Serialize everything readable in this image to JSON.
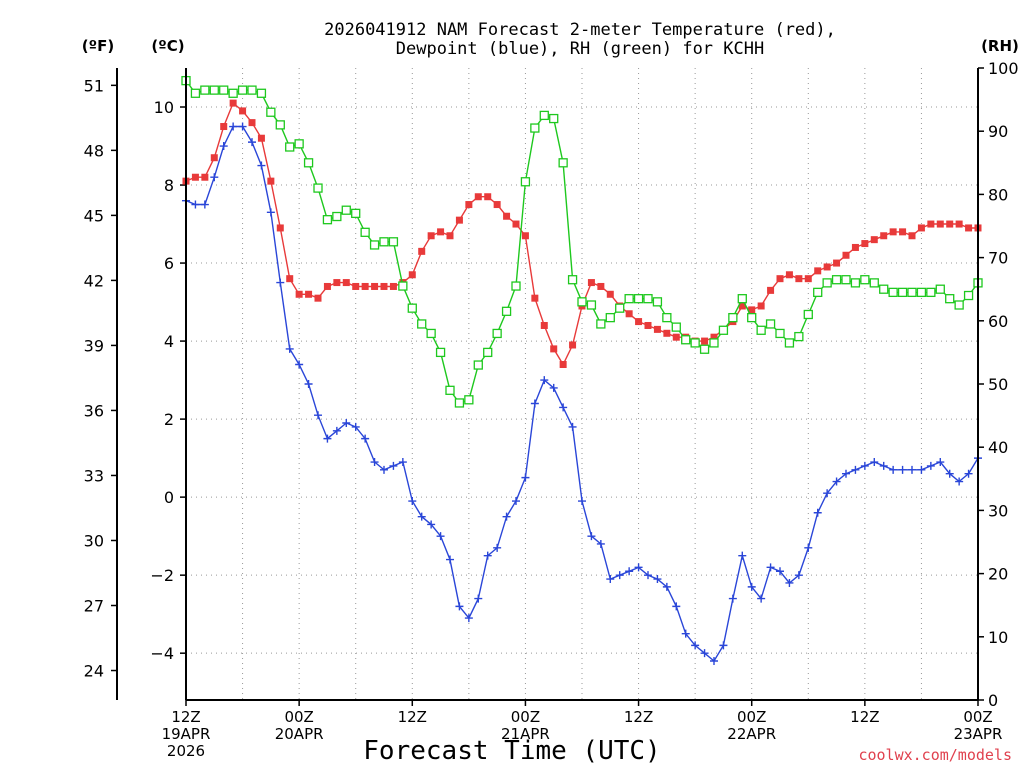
{
  "chart_data": {
    "type": "line",
    "title_line1": "2026041912 NAM Forecast 2-meter Temperature (red),",
    "title_line2": "Dewpoint (blue), RH (green) for KCHH",
    "xlabel": "Forecast Time (UTC)",
    "credit": "coolwx.com/models",
    "left_unit_f": "(ºF)",
    "left_unit_c": "(ºC)",
    "right_unit": "(RH)",
    "c_ylim": [
      -5.2,
      11.0
    ],
    "rh_ylim": [
      0,
      100
    ],
    "c_ticks": [
      {
        "v": 10,
        "label": "10"
      },
      {
        "v": 8,
        "label": "8"
      },
      {
        "v": 6,
        "label": "6"
      },
      {
        "v": 4,
        "label": "4"
      },
      {
        "v": 2,
        "label": "2"
      },
      {
        "v": 0,
        "label": "0"
      },
      {
        "v": -2,
        "label": "−2"
      },
      {
        "v": -4,
        "label": "−4"
      }
    ],
    "f_ticks": [
      {
        "v": 51,
        "label": "51"
      },
      {
        "v": 48,
        "label": "48"
      },
      {
        "v": 45,
        "label": "45"
      },
      {
        "v": 42,
        "label": "42"
      },
      {
        "v": 39,
        "label": "39"
      },
      {
        "v": 36,
        "label": "36"
      },
      {
        "v": 33,
        "label": "33"
      },
      {
        "v": 30,
        "label": "30"
      },
      {
        "v": 27,
        "label": "27"
      },
      {
        "v": 24,
        "label": "24"
      }
    ],
    "rh_ticks": [
      {
        "v": 100,
        "label": "100"
      },
      {
        "v": 90,
        "label": "90"
      },
      {
        "v": 80,
        "label": "80"
      },
      {
        "v": 70,
        "label": "70"
      },
      {
        "v": 60,
        "label": "60"
      },
      {
        "v": 50,
        "label": "50"
      },
      {
        "v": 40,
        "label": "40"
      },
      {
        "v": 30,
        "label": "30"
      },
      {
        "v": 20,
        "label": "20"
      },
      {
        "v": 10,
        "label": "10"
      },
      {
        "v": 0,
        "label": "0"
      }
    ],
    "x_hours_max": 84,
    "x_ticks": [
      {
        "h": 0,
        "lines": [
          "12Z",
          "19APR",
          "2026"
        ]
      },
      {
        "h": 12,
        "lines": [
          "00Z",
          "20APR"
        ]
      },
      {
        "h": 24,
        "lines": [
          "12Z"
        ]
      },
      {
        "h": 36,
        "lines": [
          "00Z",
          "21APR"
        ]
      },
      {
        "h": 48,
        "lines": [
          "12Z"
        ]
      },
      {
        "h": 60,
        "lines": [
          "00Z",
          "22APR"
        ]
      },
      {
        "h": 72,
        "lines": [
          "12Z"
        ]
      },
      {
        "h": 84,
        "lines": [
          "00Z",
          "23APR"
        ]
      }
    ],
    "grid_hours": [
      6,
      12,
      18,
      24,
      30,
      36,
      42,
      48,
      54,
      60,
      66,
      72,
      78
    ],
    "series": [
      {
        "name": "Temperature",
        "unit": "C",
        "color": "#e83a3a",
        "marker": "filled-square",
        "values": [
          8.1,
          8.2,
          8.2,
          8.7,
          9.5,
          10.1,
          9.9,
          9.6,
          9.2,
          8.1,
          6.9,
          5.6,
          5.2,
          5.2,
          5.1,
          5.4,
          5.5,
          5.5,
          5.4,
          5.4,
          5.4,
          5.4,
          5.4,
          5.5,
          5.7,
          6.3,
          6.7,
          6.8,
          6.7,
          7.1,
          7.5,
          7.7,
          7.7,
          7.5,
          7.2,
          7.0,
          6.7,
          5.1,
          4.4,
          3.8,
          3.4,
          3.9,
          4.9,
          5.5,
          5.4,
          5.2,
          4.9,
          4.7,
          4.5,
          4.4,
          4.3,
          4.2,
          4.1,
          4.1,
          4.0,
          4.0,
          4.1,
          4.3,
          4.5,
          4.9,
          4.8,
          4.9,
          5.3,
          5.6,
          5.7,
          5.6,
          5.6,
          5.8,
          5.9,
          6.0,
          6.2,
          6.4,
          6.5,
          6.6,
          6.7,
          6.8,
          6.8,
          6.7,
          6.9,
          7.0,
          7.0,
          7.0,
          7.0,
          6.9,
          6.9
        ]
      },
      {
        "name": "Dewpoint",
        "unit": "C",
        "color": "#2a46d8",
        "marker": "plus",
        "values": [
          7.6,
          7.5,
          7.5,
          8.2,
          9.0,
          9.5,
          9.5,
          9.1,
          8.5,
          7.3,
          5.5,
          3.8,
          3.4,
          2.9,
          2.1,
          1.5,
          1.7,
          1.9,
          1.8,
          1.5,
          0.9,
          0.7,
          0.8,
          0.9,
          -0.1,
          -0.5,
          -0.7,
          -1.0,
          -1.6,
          -2.8,
          -3.1,
          -2.6,
          -1.5,
          -1.3,
          -0.5,
          -0.1,
          0.5,
          2.4,
          3.0,
          2.8,
          2.3,
          1.8,
          -0.1,
          -1.0,
          -1.2,
          -2.1,
          -2.0,
          -1.9,
          -1.8,
          -2.0,
          -2.1,
          -2.3,
          -2.8,
          -3.5,
          -3.8,
          -4.0,
          -4.2,
          -3.8,
          -2.6,
          -1.5,
          -2.3,
          -2.6,
          -1.8,
          -1.9,
          -2.2,
          -2.0,
          -1.3,
          -0.4,
          0.1,
          0.4,
          0.6,
          0.7,
          0.8,
          0.9,
          0.8,
          0.7,
          0.7,
          0.7,
          0.7,
          0.8,
          0.9,
          0.6,
          0.4,
          0.6,
          1.0
        ]
      },
      {
        "name": "RH",
        "unit": "%",
        "color": "#1ec81e",
        "marker": "open-square",
        "values": [
          98,
          96,
          96.5,
          96.5,
          96.5,
          96,
          96.5,
          96.5,
          96,
          93,
          91,
          87.5,
          88,
          85,
          81,
          76,
          76.5,
          77.5,
          77,
          74,
          72,
          72.5,
          72.5,
          65.5,
          62,
          59.5,
          58,
          55,
          49,
          47,
          47.5,
          53,
          55,
          58,
          61.5,
          65.5,
          82,
          90.5,
          92.5,
          92,
          85,
          66.5,
          63,
          62.5,
          59.5,
          60.5,
          62,
          63.5,
          63.5,
          63.5,
          63,
          60.5,
          59,
          57,
          56.5,
          55.5,
          56.5,
          58.5,
          60.5,
          63.5,
          60.5,
          58.5,
          59.5,
          58,
          56.5,
          57.5,
          61,
          64.5,
          66,
          66.5,
          66.5,
          66,
          66.5,
          66,
          65,
          64.5,
          64.5,
          64.5,
          64.5,
          64.5,
          65,
          63.5,
          62.5,
          64,
          66
        ]
      }
    ]
  }
}
